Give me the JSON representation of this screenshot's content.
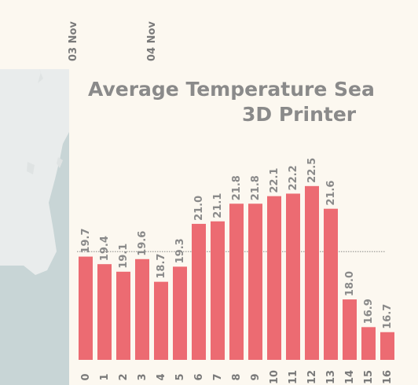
{
  "dates": [
    "03 Nov",
    "04 Nov"
  ],
  "title_line1": "Average Temperature Sea",
  "title_line2": "3D Printer",
  "colors": {
    "bar": "#ec6b72",
    "text": "#8a8a8a",
    "background": "#fcf8f0",
    "map_land": "#e9ecec",
    "map_sea": "#c8d5d6"
  },
  "chart_data": {
    "type": "bar",
    "categories": [
      "0",
      "1",
      "2",
      "3",
      "4",
      "5",
      "6",
      "7",
      "8",
      "9",
      "10",
      "11",
      "12",
      "13",
      "14",
      "15",
      "16"
    ],
    "values": [
      19.7,
      19.4,
      19.1,
      19.6,
      18.7,
      19.3,
      21.0,
      21.1,
      21.8,
      21.8,
      22.1,
      22.2,
      22.5,
      21.6,
      18.0,
      16.9,
      16.7
    ],
    "labels": [
      "19.7",
      "19.4",
      "19.1",
      "19.6",
      "18.7",
      "19.3",
      "21.0",
      "21.1",
      "21.8",
      "21.8",
      "22.1",
      "22.2",
      "22.5",
      "21.6",
      "18.0",
      "16.9",
      "16.7"
    ],
    "average_line": 19.9,
    "ylim": [
      15.6,
      22.9
    ]
  }
}
